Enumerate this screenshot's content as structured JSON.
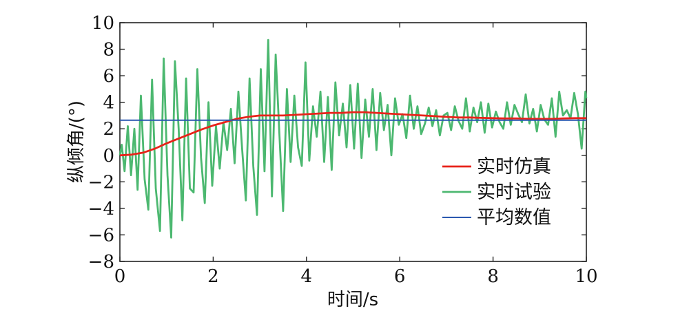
{
  "chart_data": {
    "type": "line",
    "title": "",
    "xlabel": "时间/s",
    "ylabel": "纵倾角/(°)",
    "xlim": [
      0,
      10
    ],
    "ylim": [
      -8,
      10
    ],
    "xticks": [
      0,
      2,
      4,
      6,
      8,
      10
    ],
    "yticks": [
      10,
      8,
      6,
      4,
      2,
      0,
      -2,
      -4,
      -6,
      -8
    ],
    "grid": false,
    "legend_position": "lower-right",
    "series": [
      {
        "name": "实时仿真",
        "color": "#e8231a",
        "x": [
          0,
          0.25,
          0.5,
          0.75,
          1.0,
          1.25,
          1.5,
          1.75,
          2.0,
          2.25,
          2.5,
          2.75,
          3.0,
          3.25,
          3.5,
          3.75,
          4.0,
          4.25,
          4.5,
          4.75,
          5.0,
          5.25,
          5.5,
          5.75,
          6.0,
          6.25,
          6.5,
          6.75,
          7.0,
          7.25,
          7.5,
          7.75,
          8.0,
          8.25,
          8.5,
          8.75,
          9.0,
          9.25,
          9.5,
          9.75,
          10.0
        ],
        "y": [
          0,
          0.05,
          0.2,
          0.5,
          0.9,
          1.25,
          1.6,
          1.95,
          2.25,
          2.5,
          2.75,
          2.9,
          3.0,
          3.0,
          3.0,
          3.05,
          3.1,
          3.15,
          3.2,
          3.2,
          3.25,
          3.25,
          3.2,
          3.15,
          3.1,
          3.05,
          3.0,
          2.95,
          2.9,
          2.85,
          2.85,
          2.82,
          2.8,
          2.78,
          2.78,
          2.76,
          2.75,
          2.75,
          2.78,
          2.8,
          2.8
        ]
      },
      {
        "name": "实时试验",
        "color": "#4cb870",
        "x": [
          0,
          0.04,
          0.1,
          0.17,
          0.24,
          0.31,
          0.38,
          0.45,
          0.53,
          0.61,
          0.69,
          0.77,
          0.86,
          0.94,
          1.02,
          1.1,
          1.18,
          1.26,
          1.34,
          1.42,
          1.5,
          1.58,
          1.66,
          1.74,
          1.82,
          1.9,
          1.98,
          2.06,
          2.14,
          2.22,
          2.3,
          2.38,
          2.46,
          2.54,
          2.62,
          2.7,
          2.78,
          2.86,
          2.94,
          3.02,
          3.1,
          3.18,
          3.26,
          3.34,
          3.42,
          3.5,
          3.58,
          3.66,
          3.74,
          3.82,
          3.9,
          3.98,
          4.06,
          4.14,
          4.22,
          4.3,
          4.38,
          4.46,
          4.54,
          4.62,
          4.7,
          4.78,
          4.86,
          4.94,
          5.02,
          5.1,
          5.18,
          5.26,
          5.34,
          5.42,
          5.5,
          5.58,
          5.66,
          5.74,
          5.82,
          5.9,
          5.98,
          6.06,
          6.14,
          6.22,
          6.3,
          6.38,
          6.46,
          6.54,
          6.62,
          6.7,
          6.78,
          6.86,
          6.94,
          7.02,
          7.1,
          7.18,
          7.26,
          7.34,
          7.42,
          7.5,
          7.58,
          7.66,
          7.74,
          7.82,
          7.9,
          7.98,
          8.06,
          8.14,
          8.22,
          8.3,
          8.38,
          8.46,
          8.54,
          8.62,
          8.7,
          8.78,
          8.86,
          8.94,
          9.02,
          9.1,
          9.18,
          9.26,
          9.34,
          9.42,
          9.5,
          9.58,
          9.66,
          9.74,
          9.82,
          9.9,
          9.98,
          10.0
        ],
        "y": [
          0.0,
          0.8,
          -1.2,
          2.2,
          -1.5,
          2.0,
          -2.6,
          4.5,
          -1.8,
          -4.1,
          5.7,
          -2.5,
          -5.7,
          7.3,
          -1.5,
          -6.2,
          7.1,
          2.0,
          -4.9,
          5.8,
          -2.5,
          -2.8,
          6.5,
          -0.2,
          -3.6,
          4.0,
          -2.3,
          2.2,
          -1.0,
          2.5,
          0.4,
          3.5,
          -0.6,
          4.8,
          0.5,
          -3.4,
          5.8,
          -0.8,
          -4.5,
          6.5,
          -1.2,
          8.7,
          -3.1,
          7.6,
          1.6,
          -4.2,
          5.0,
          -0.5,
          4.5,
          0.6,
          -0.8,
          7.0,
          -0.4,
          3.7,
          1.4,
          4.8,
          -0.5,
          4.4,
          -1.1,
          5.5,
          1.5,
          3.9,
          0.6,
          5.3,
          0.5,
          5.4,
          -0.2,
          4.2,
          1.4,
          5.0,
          0.4,
          4.7,
          1.9,
          3.8,
          0.0,
          4.3,
          2.3,
          3.1,
          1.3,
          4.5,
          2.0,
          3.7,
          1.6,
          2.4,
          3.6,
          2.2,
          3.4,
          1.5,
          3.0,
          3.2,
          1.9,
          3.7,
          2.6,
          2.0,
          4.3,
          1.8,
          3.6,
          2.5,
          4.0,
          1.7,
          3.9,
          2.1,
          3.3,
          2.5,
          2.0,
          4.0,
          2.3,
          3.8,
          3.1,
          2.5,
          4.6,
          2.4,
          3.5,
          1.8,
          3.8,
          2.7,
          2.3,
          4.3,
          1.4,
          4.8,
          3.0,
          3.4,
          2.8,
          4.7,
          3.1,
          0.5,
          4.8,
          4.3
        ]
      },
      {
        "name": "平均数值",
        "color": "#2a58b0",
        "x": [
          0,
          10
        ],
        "y": [
          2.65,
          2.65
        ]
      }
    ]
  }
}
